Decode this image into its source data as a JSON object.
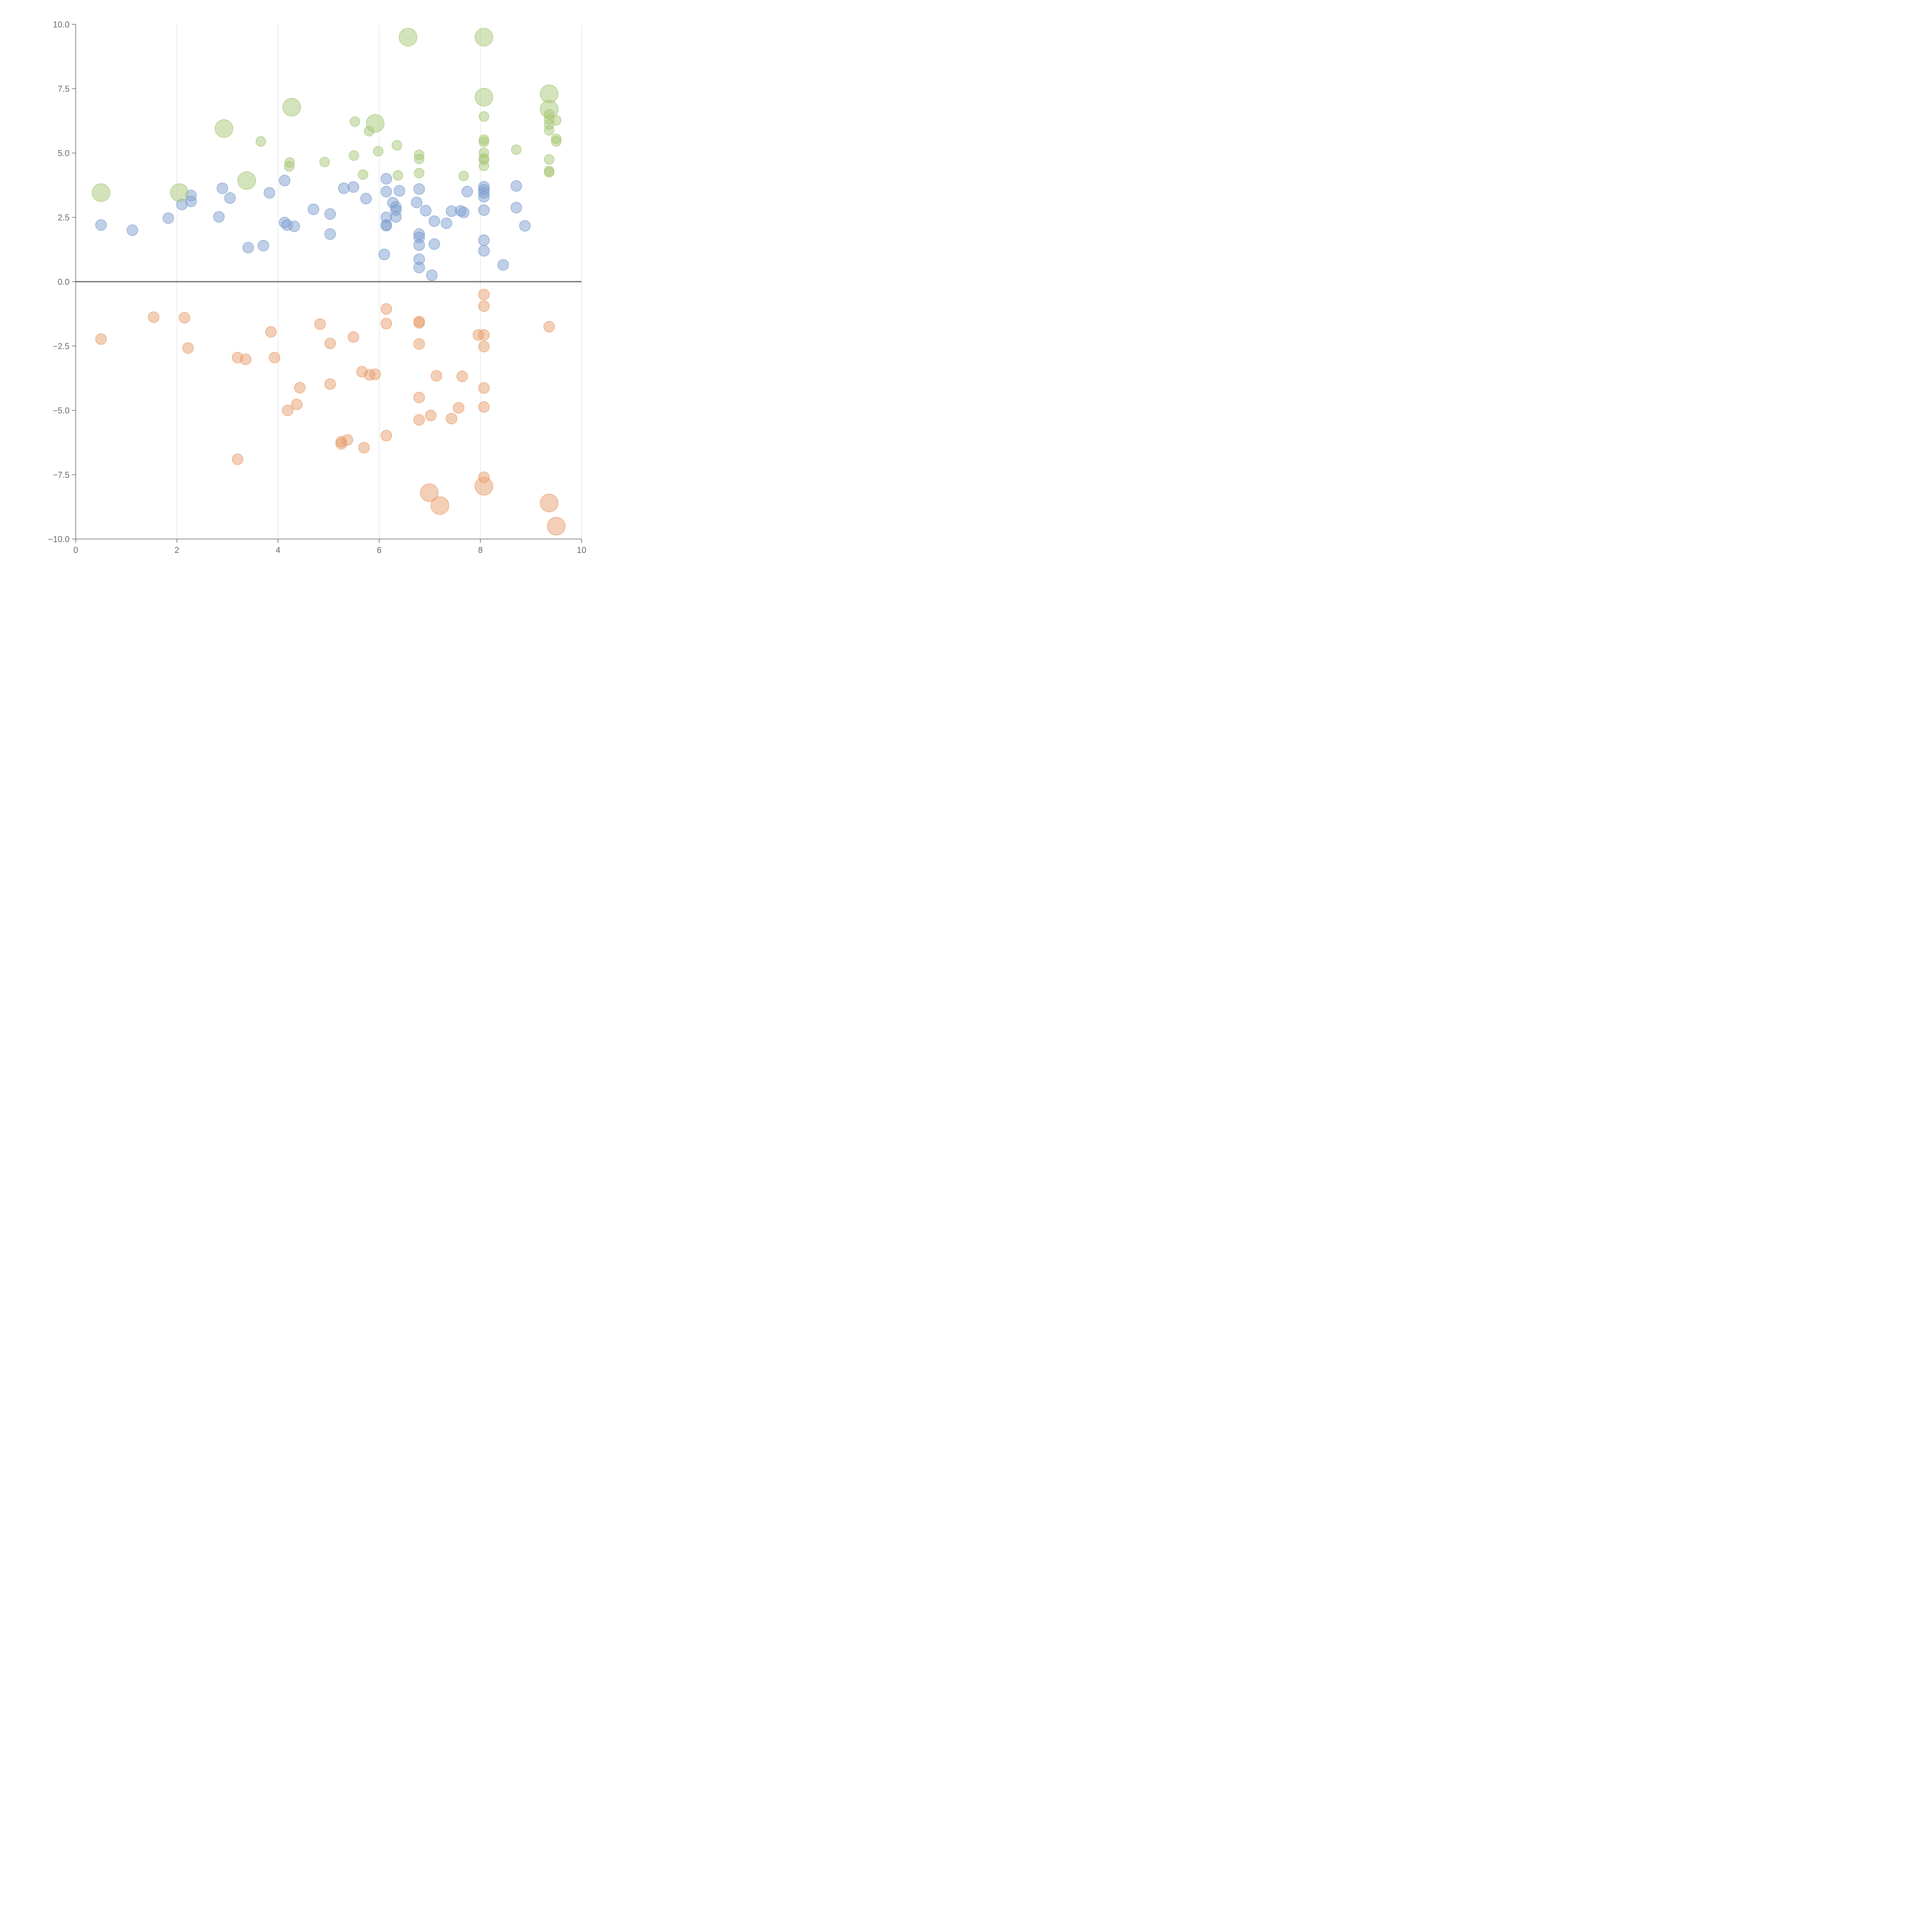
{
  "chart_data": {
    "type": "scatter",
    "title": "",
    "xlabel": "",
    "ylabel": "",
    "xlim": [
      0,
      10
    ],
    "ylim": [
      -10,
      10
    ],
    "x_ticks": [
      0,
      2,
      4,
      6,
      8,
      10
    ],
    "x_tick_labels": [
      "0",
      "2",
      "4",
      "6",
      "8",
      "10"
    ],
    "y_ticks": [
      -10,
      -7.5,
      -5,
      -2.5,
      0,
      2.5,
      5,
      7.5,
      10
    ],
    "y_tick_labels": [
      "−10.0",
      "−7.5",
      "−5.0",
      "−2.5",
      "0.0",
      "2.5",
      "5.0",
      "7.5",
      "10.0"
    ],
    "vertical_grid": true,
    "zero_line": true,
    "colors": {
      "blue": "#7f9fcf",
      "green": "#a8c878",
      "orange": "#e8a070",
      "axis": "#666666",
      "grid": "#dddddd"
    },
    "series": [
      {
        "color": "#7f9fcf",
        "points": [
          {
            "x": 0.5,
            "y": 2.2,
            "r": 2
          },
          {
            "x": 1.12,
            "y": 2.0,
            "r": 2
          },
          {
            "x": 1.83,
            "y": 2.47,
            "r": 2
          },
          {
            "x": 2.1,
            "y": 3.0,
            "r": 2
          },
          {
            "x": 2.28,
            "y": 3.35,
            "r": 2
          },
          {
            "x": 2.28,
            "y": 3.12,
            "r": 2
          },
          {
            "x": 2.83,
            "y": 2.52,
            "r": 2
          },
          {
            "x": 2.9,
            "y": 3.63,
            "r": 2
          },
          {
            "x": 3.05,
            "y": 3.25,
            "r": 2
          },
          {
            "x": 3.41,
            "y": 1.32,
            "r": 2
          },
          {
            "x": 3.71,
            "y": 1.4,
            "r": 2
          },
          {
            "x": 3.83,
            "y": 3.45,
            "r": 2
          },
          {
            "x": 4.13,
            "y": 3.93,
            "r": 2
          },
          {
            "x": 4.13,
            "y": 2.3,
            "r": 2
          },
          {
            "x": 4.18,
            "y": 2.2,
            "r": 2
          },
          {
            "x": 4.32,
            "y": 2.15,
            "r": 2
          },
          {
            "x": 4.7,
            "y": 2.81,
            "r": 2
          },
          {
            "x": 5.03,
            "y": 2.63,
            "r": 2
          },
          {
            "x": 5.03,
            "y": 1.85,
            "r": 2
          },
          {
            "x": 5.3,
            "y": 3.63,
            "r": 2
          },
          {
            "x": 5.49,
            "y": 3.68,
            "r": 2
          },
          {
            "x": 5.74,
            "y": 3.23,
            "r": 2
          },
          {
            "x": 6.1,
            "y": 1.06,
            "r": 2
          },
          {
            "x": 6.14,
            "y": 4.0,
            "r": 2
          },
          {
            "x": 6.14,
            "y": 3.5,
            "r": 2
          },
          {
            "x": 6.14,
            "y": 2.5,
            "r": 2
          },
          {
            "x": 6.14,
            "y": 2.2,
            "r": 2
          },
          {
            "x": 6.14,
            "y": 2.18,
            "r": 2
          },
          {
            "x": 6.27,
            "y": 3.07,
            "r": 2
          },
          {
            "x": 6.33,
            "y": 2.9,
            "r": 2
          },
          {
            "x": 6.33,
            "y": 2.78,
            "r": 2
          },
          {
            "x": 6.33,
            "y": 2.52,
            "r": 2
          },
          {
            "x": 6.4,
            "y": 3.53,
            "r": 2
          },
          {
            "x": 6.74,
            "y": 3.08,
            "r": 2
          },
          {
            "x": 6.79,
            "y": 3.6,
            "r": 2
          },
          {
            "x": 6.79,
            "y": 1.85,
            "r": 2
          },
          {
            "x": 6.79,
            "y": 1.72,
            "r": 2
          },
          {
            "x": 6.79,
            "y": 1.42,
            "r": 2
          },
          {
            "x": 6.79,
            "y": 0.87,
            "r": 2
          },
          {
            "x": 6.79,
            "y": 0.55,
            "r": 2
          },
          {
            "x": 6.92,
            "y": 2.76,
            "r": 2
          },
          {
            "x": 7.04,
            "y": 0.25,
            "r": 2
          },
          {
            "x": 7.09,
            "y": 1.46,
            "r": 2
          },
          {
            "x": 7.09,
            "y": 2.35,
            "r": 2
          },
          {
            "x": 7.33,
            "y": 2.27,
            "r": 2
          },
          {
            "x": 7.43,
            "y": 2.74,
            "r": 2
          },
          {
            "x": 7.61,
            "y": 2.75,
            "r": 2
          },
          {
            "x": 7.67,
            "y": 2.69,
            "r": 2
          },
          {
            "x": 7.74,
            "y": 3.5,
            "r": 2
          },
          {
            "x": 8.07,
            "y": 3.69,
            "r": 2
          },
          {
            "x": 8.07,
            "y": 3.58,
            "r": 2
          },
          {
            "x": 8.07,
            "y": 3.45,
            "r": 2
          },
          {
            "x": 8.07,
            "y": 3.3,
            "r": 2
          },
          {
            "x": 8.07,
            "y": 2.78,
            "r": 2
          },
          {
            "x": 8.07,
            "y": 1.61,
            "r": 2
          },
          {
            "x": 8.07,
            "y": 1.2,
            "r": 2
          },
          {
            "x": 8.45,
            "y": 0.65,
            "r": 2
          },
          {
            "x": 8.71,
            "y": 3.72,
            "r": 2
          },
          {
            "x": 8.71,
            "y": 2.88,
            "r": 2
          },
          {
            "x": 8.88,
            "y": 2.17,
            "r": 2
          }
        ]
      },
      {
        "color": "#a8c878",
        "points": [
          {
            "x": 0.5,
            "y": 3.46,
            "r": 3.3
          },
          {
            "x": 2.05,
            "y": 3.46,
            "r": 3.3
          },
          {
            "x": 2.93,
            "y": 5.95,
            "r": 3.3
          },
          {
            "x": 3.38,
            "y": 3.93,
            "r": 3.3
          },
          {
            "x": 3.66,
            "y": 5.45,
            "r": 1.8
          },
          {
            "x": 4.22,
            "y": 4.48,
            "r": 1.8
          },
          {
            "x": 4.23,
            "y": 4.63,
            "r": 1.8
          },
          {
            "x": 4.27,
            "y": 6.78,
            "r": 3.3
          },
          {
            "x": 4.92,
            "y": 4.65,
            "r": 1.8
          },
          {
            "x": 5.5,
            "y": 4.9,
            "r": 1.8
          },
          {
            "x": 5.52,
            "y": 6.22,
            "r": 1.8
          },
          {
            "x": 5.68,
            "y": 4.16,
            "r": 1.8
          },
          {
            "x": 5.8,
            "y": 5.85,
            "r": 1.8
          },
          {
            "x": 5.92,
            "y": 6.15,
            "r": 3.3
          },
          {
            "x": 5.98,
            "y": 5.07,
            "r": 1.8
          },
          {
            "x": 6.35,
            "y": 5.3,
            "r": 1.8
          },
          {
            "x": 6.37,
            "y": 4.13,
            "r": 1.8
          },
          {
            "x": 6.57,
            "y": 9.5,
            "r": 3.3
          },
          {
            "x": 6.79,
            "y": 4.93,
            "r": 1.8
          },
          {
            "x": 6.79,
            "y": 4.77,
            "r": 1.8
          },
          {
            "x": 6.79,
            "y": 4.22,
            "r": 1.8
          },
          {
            "x": 7.67,
            "y": 4.11,
            "r": 1.8
          },
          {
            "x": 8.07,
            "y": 9.5,
            "r": 3.3
          },
          {
            "x": 8.07,
            "y": 7.17,
            "r": 3.3
          },
          {
            "x": 8.07,
            "y": 6.42,
            "r": 1.8
          },
          {
            "x": 8.07,
            "y": 5.52,
            "r": 1.8
          },
          {
            "x": 8.07,
            "y": 5.43,
            "r": 1.8
          },
          {
            "x": 8.07,
            "y": 5.0,
            "r": 1.8
          },
          {
            "x": 8.07,
            "y": 4.8,
            "r": 1.8
          },
          {
            "x": 8.07,
            "y": 4.73,
            "r": 1.8
          },
          {
            "x": 8.07,
            "y": 4.5,
            "r": 1.8
          },
          {
            "x": 8.71,
            "y": 5.13,
            "r": 1.8
          },
          {
            "x": 9.36,
            "y": 7.3,
            "r": 3.3
          },
          {
            "x": 9.36,
            "y": 6.7,
            "r": 3.3
          },
          {
            "x": 9.36,
            "y": 6.5,
            "r": 1.8
          },
          {
            "x": 9.36,
            "y": 6.3,
            "r": 1.8
          },
          {
            "x": 9.36,
            "y": 6.1,
            "r": 1.8
          },
          {
            "x": 9.36,
            "y": 5.88,
            "r": 1.8
          },
          {
            "x": 9.36,
            "y": 4.75,
            "r": 1.8
          },
          {
            "x": 9.36,
            "y": 4.3,
            "r": 1.8
          },
          {
            "x": 9.36,
            "y": 4.25,
            "r": 1.8
          },
          {
            "x": 9.5,
            "y": 6.27,
            "r": 1.8
          },
          {
            "x": 9.5,
            "y": 5.55,
            "r": 1.8
          },
          {
            "x": 9.5,
            "y": 5.45,
            "r": 1.8
          }
        ]
      },
      {
        "color": "#e8a070",
        "points": [
          {
            "x": 0.5,
            "y": -2.23,
            "r": 2
          },
          {
            "x": 1.54,
            "y": -1.38,
            "r": 2
          },
          {
            "x": 2.15,
            "y": -1.4,
            "r": 2
          },
          {
            "x": 2.22,
            "y": -2.58,
            "r": 2
          },
          {
            "x": 3.2,
            "y": -2.95,
            "r": 2
          },
          {
            "x": 3.2,
            "y": -6.9,
            "r": 2
          },
          {
            "x": 3.36,
            "y": -3.02,
            "r": 2
          },
          {
            "x": 3.86,
            "y": -1.95,
            "r": 2
          },
          {
            "x": 3.93,
            "y": -2.95,
            "r": 2
          },
          {
            "x": 4.19,
            "y": -5.0,
            "r": 2
          },
          {
            "x": 4.37,
            "y": -4.77,
            "r": 2
          },
          {
            "x": 4.43,
            "y": -4.12,
            "r": 2
          },
          {
            "x": 4.83,
            "y": -1.65,
            "r": 2
          },
          {
            "x": 5.03,
            "y": -2.4,
            "r": 2
          },
          {
            "x": 5.03,
            "y": -3.98,
            "r": 2
          },
          {
            "x": 5.25,
            "y": -6.22,
            "r": 2
          },
          {
            "x": 5.25,
            "y": -6.3,
            "r": 2
          },
          {
            "x": 5.37,
            "y": -6.15,
            "r": 2
          },
          {
            "x": 5.49,
            "y": -2.15,
            "r": 2
          },
          {
            "x": 5.66,
            "y": -3.5,
            "r": 2
          },
          {
            "x": 5.7,
            "y": -6.45,
            "r": 2
          },
          {
            "x": 5.81,
            "y": -3.62,
            "r": 2
          },
          {
            "x": 5.92,
            "y": -3.6,
            "r": 2
          },
          {
            "x": 6.14,
            "y": -1.06,
            "r": 2
          },
          {
            "x": 6.14,
            "y": -1.63,
            "r": 2
          },
          {
            "x": 6.14,
            "y": -5.98,
            "r": 2
          },
          {
            "x": 6.79,
            "y": -1.55,
            "r": 2
          },
          {
            "x": 6.79,
            "y": -1.6,
            "r": 2
          },
          {
            "x": 6.79,
            "y": -2.42,
            "r": 2
          },
          {
            "x": 6.79,
            "y": -4.5,
            "r": 2
          },
          {
            "x": 6.79,
            "y": -5.37,
            "r": 2
          },
          {
            "x": 6.99,
            "y": -8.2,
            "r": 3.3
          },
          {
            "x": 7.02,
            "y": -5.2,
            "r": 2
          },
          {
            "x": 7.13,
            "y": -3.66,
            "r": 2
          },
          {
            "x": 7.2,
            "y": -8.7,
            "r": 3.3
          },
          {
            "x": 7.43,
            "y": -5.32,
            "r": 2
          },
          {
            "x": 7.57,
            "y": -4.9,
            "r": 2
          },
          {
            "x": 7.64,
            "y": -3.68,
            "r": 2
          },
          {
            "x": 7.96,
            "y": -2.07,
            "r": 2
          },
          {
            "x": 8.07,
            "y": -0.5,
            "r": 2
          },
          {
            "x": 8.07,
            "y": -0.95,
            "r": 2
          },
          {
            "x": 8.07,
            "y": -2.07,
            "r": 2
          },
          {
            "x": 8.07,
            "y": -2.52,
            "r": 2
          },
          {
            "x": 8.07,
            "y": -4.13,
            "r": 2
          },
          {
            "x": 8.07,
            "y": -4.87,
            "r": 2
          },
          {
            "x": 8.07,
            "y": -7.6,
            "r": 2
          },
          {
            "x": 8.07,
            "y": -7.95,
            "r": 3.3
          },
          {
            "x": 9.36,
            "y": -1.75,
            "r": 2
          },
          {
            "x": 9.36,
            "y": -8.6,
            "r": 3.3
          },
          {
            "x": 9.5,
            "y": -9.5,
            "r": 3.3
          }
        ]
      }
    ]
  }
}
